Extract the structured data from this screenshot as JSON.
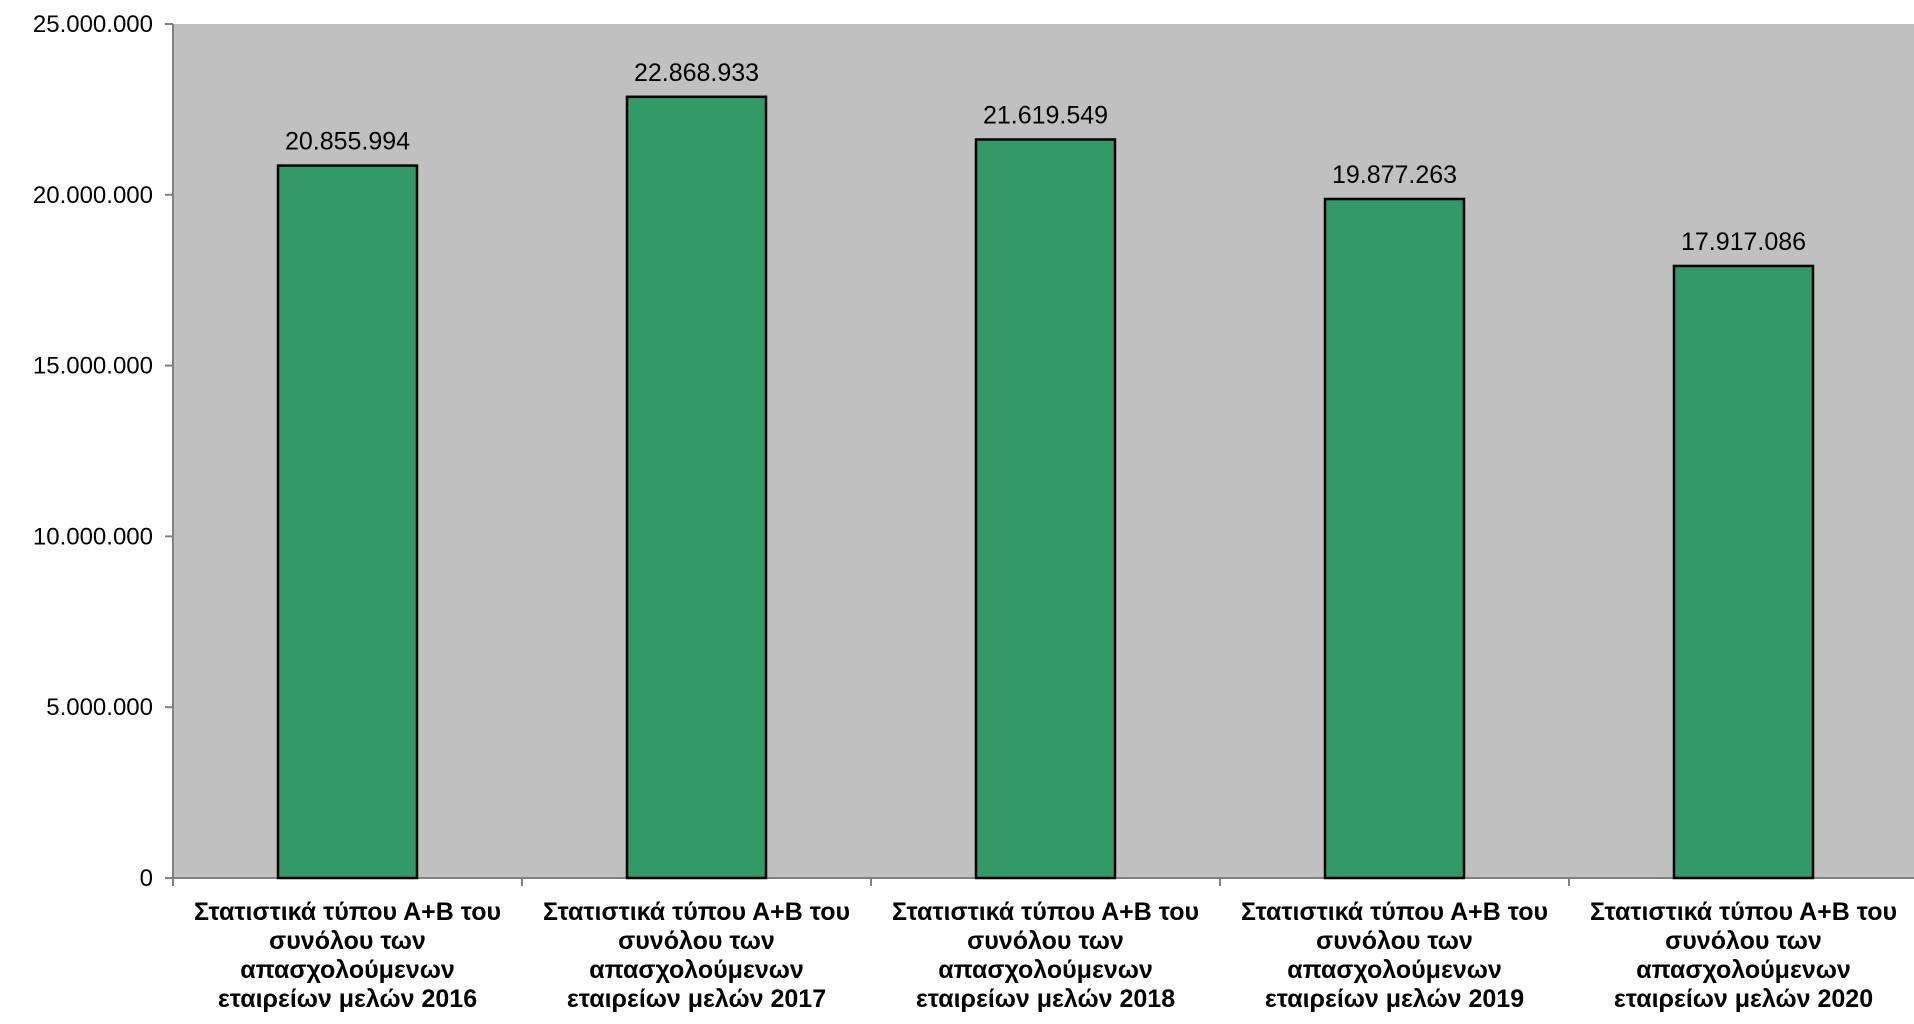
{
  "chart_data": {
    "type": "bar",
    "title": "",
    "xlabel": "",
    "ylabel": "",
    "categories": [
      [
        "Στατιστικά τύπου Α+Β του",
        "συνόλου των",
        "απασχολούμενων",
        "εταιρείων μελών 2016"
      ],
      [
        "Στατιστικά τύπου Α+Β του",
        "συνόλου των",
        "απασχολούμενων",
        "εταιρείων μελών 2017"
      ],
      [
        "Στατιστικά τύπου Α+Β του",
        "συνόλου των",
        "απασχολούμενων",
        "εταιρείων μελών 2018"
      ],
      [
        "Στατιστικά τύπου Α+Β του",
        "συνόλου των",
        "απασχολούμενων",
        "εταιρείων μελών 2019"
      ],
      [
        "Στατιστικά τύπου Α+Β του",
        "συνόλου των",
        "απασχολούμενων",
        "εταιρείων μελών 2020"
      ]
    ],
    "values": [
      20855994,
      22868933,
      21619549,
      19877263,
      17917086
    ],
    "data_labels": [
      "20.855.994",
      "22.868.933",
      "21.619.549",
      "19.877.263",
      "17.917.086"
    ],
    "ylim": [
      0,
      25000000
    ],
    "y_ticks": [
      0,
      5000000,
      10000000,
      15000000,
      20000000,
      25000000
    ],
    "y_tick_labels": [
      "0",
      "5.000.000",
      "10.000.000",
      "15.000.000",
      "20.000.000",
      "25.000.000"
    ],
    "grid": false,
    "legend": "none",
    "colors": {
      "bar_fill": "#339966",
      "bar_stroke": "#000000",
      "plot_background": "#c0c0c0",
      "axis": "#808080"
    }
  }
}
